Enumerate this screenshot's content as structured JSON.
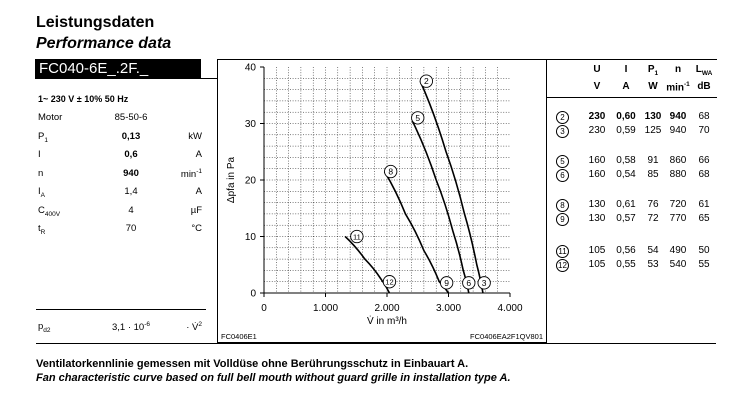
{
  "header": {
    "title_de": "Leistungsdaten",
    "title_en": "Performance data",
    "model": "FC040-6E_.2F._"
  },
  "specs": {
    "supply": "1~ 230 V ± 10% 50 Hz",
    "rows": [
      {
        "label": "Motor",
        "value": "85-50-6",
        "unit": "",
        "bold": false
      },
      {
        "label": "P1",
        "value": "0,13",
        "unit": "kW",
        "bold": true
      },
      {
        "label": "I",
        "value": "0,6",
        "unit": "A",
        "bold": true
      },
      {
        "label": "n",
        "value": "940",
        "unit": "min-1",
        "bold": true
      },
      {
        "label": "IA",
        "value": "1,4",
        "unit": "A",
        "bold": false
      },
      {
        "label": "C400V",
        "value": "4",
        "unit": "µF",
        "bold": false
      },
      {
        "label": "tR",
        "value": "70",
        "unit": "°C",
        "bold": false
      }
    ],
    "pd2": {
      "label": "pd2",
      "value": "3,1 · 10-6",
      "unit": "· V̇2"
    }
  },
  "chart": {
    "code_left": "FC0406E1",
    "code_right": "FC0406EA2F1QV801"
  },
  "chart_data": {
    "type": "line",
    "xlabel": "V̇ in m³/h",
    "ylabel": "Δpfa in Pa",
    "xlim": [
      0,
      4000
    ],
    "ylim": [
      0,
      40
    ],
    "x_ticks": [
      "0",
      "1.000",
      "2.000",
      "3.000",
      "4.000"
    ],
    "y_ticks": [
      "0",
      "10",
      "20",
      "30",
      "40"
    ],
    "grid": true,
    "series": [
      {
        "name": "2",
        "points": [
          [
            2540,
            37.5
          ],
          [
            2960,
            25
          ],
          [
            3260,
            14
          ],
          [
            3460,
            5
          ],
          [
            3560,
            0
          ]
        ]
      },
      {
        "name": "3",
        "points": [
          [
            3560,
            0
          ]
        ]
      },
      {
        "name": "5",
        "points": [
          [
            2410,
            30.5
          ],
          [
            2800,
            20
          ],
          [
            3070,
            11
          ],
          [
            3240,
            4
          ],
          [
            3330,
            0
          ]
        ]
      },
      {
        "name": "6",
        "points": [
          [
            3330,
            0
          ]
        ]
      },
      {
        "name": "8",
        "points": [
          [
            1960,
            21.5
          ],
          [
            2300,
            14
          ],
          [
            2600,
            7.5
          ],
          [
            2850,
            2
          ],
          [
            3000,
            0
          ]
        ]
      },
      {
        "name": "9",
        "points": [
          [
            3000,
            0
          ]
        ]
      },
      {
        "name": "11",
        "points": [
          [
            1320,
            10
          ],
          [
            1640,
            6
          ],
          [
            1900,
            2.5
          ],
          [
            2040,
            0
          ]
        ]
      },
      {
        "name": "12",
        "points": [
          [
            2040,
            0
          ]
        ]
      }
    ]
  },
  "table": {
    "headers": [
      "U",
      "I",
      "P1",
      "n",
      "LWA"
    ],
    "units": [
      "V",
      "A",
      "W",
      "min-1",
      "dB"
    ],
    "rows": [
      {
        "id": "2",
        "U": "230",
        "I": "0,60",
        "P": "130",
        "n": "940",
        "L": "68",
        "bold": true
      },
      {
        "id": "3",
        "U": "230",
        "I": "0,59",
        "P": "125",
        "n": "940",
        "L": "70",
        "bold": false
      },
      {
        "id": "5",
        "U": "160",
        "I": "0,58",
        "P": "91",
        "n": "860",
        "L": "66",
        "bold": false
      },
      {
        "id": "6",
        "U": "160",
        "I": "0,54",
        "P": "85",
        "n": "880",
        "L": "68",
        "bold": false
      },
      {
        "id": "8",
        "U": "130",
        "I": "0,61",
        "P": "76",
        "n": "720",
        "L": "61",
        "bold": false
      },
      {
        "id": "9",
        "U": "130",
        "I": "0,57",
        "P": "72",
        "n": "770",
        "L": "65",
        "bold": false
      },
      {
        "id": "11",
        "U": "105",
        "I": "0,56",
        "P": "54",
        "n": "490",
        "L": "50",
        "bold": false
      },
      {
        "id": "12",
        "U": "105",
        "I": "0,55",
        "P": "53",
        "n": "540",
        "L": "55",
        "bold": false
      }
    ]
  },
  "footer": {
    "line_de": "Ventilatorkennlinie gemessen mit Volldüse ohne Berührungsschutz in Einbauart A.",
    "line_en": "Fan characteristic curve based on full bell mouth without guard grille in installation type A."
  }
}
